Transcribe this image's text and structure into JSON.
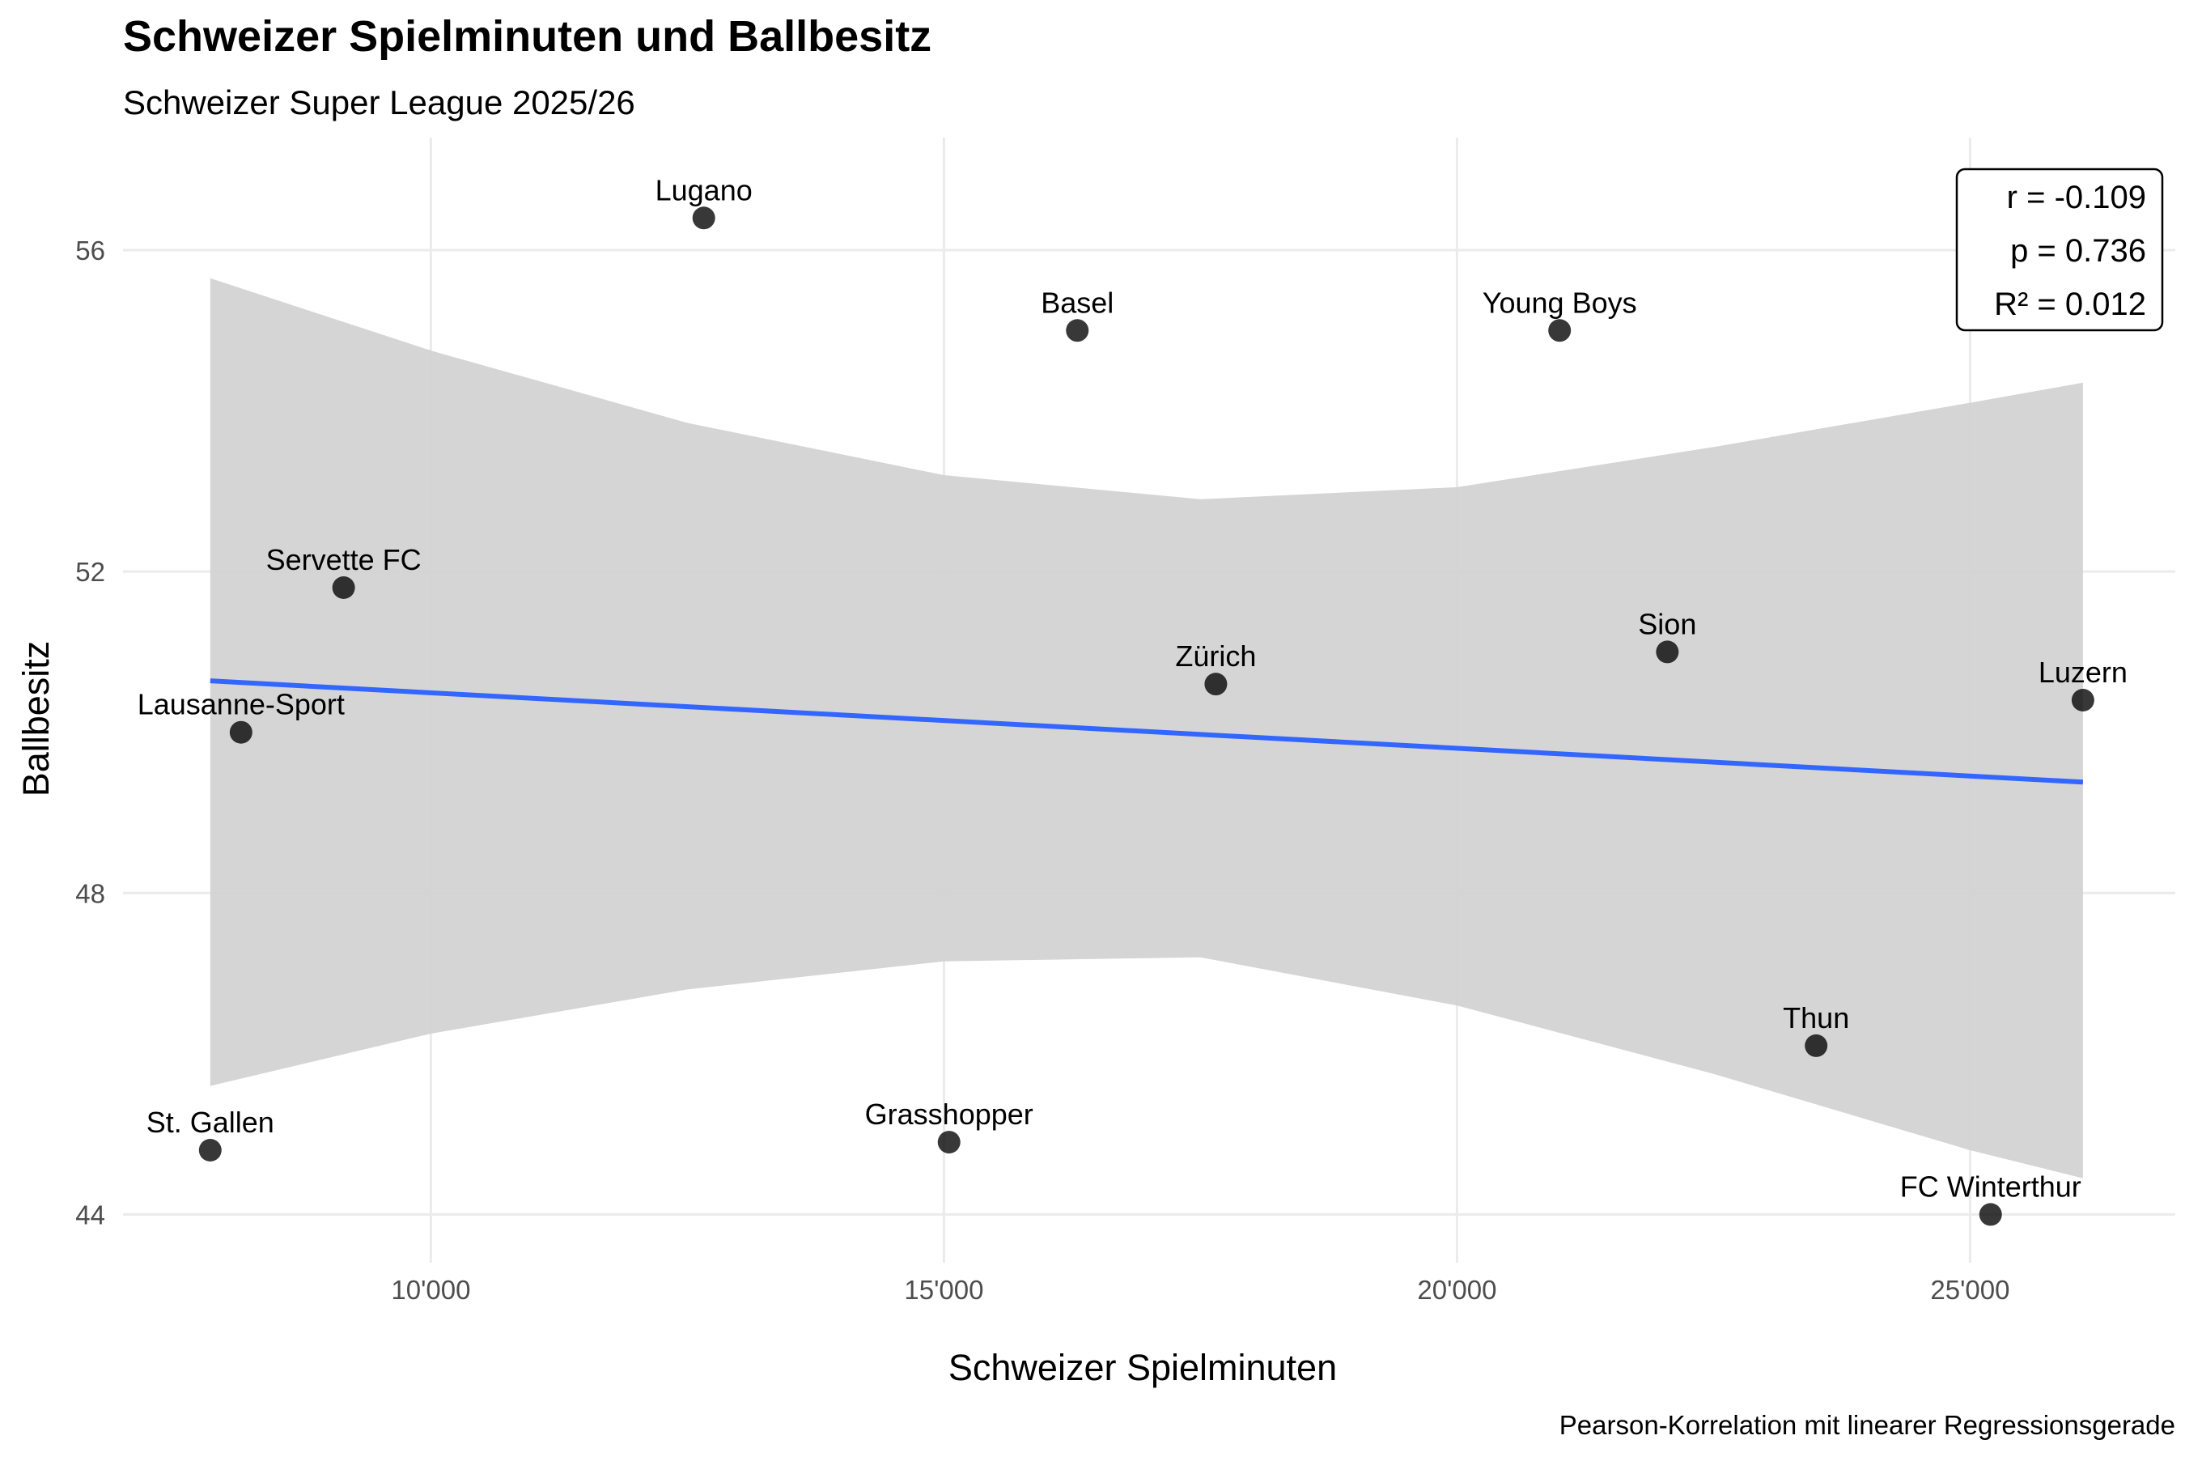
{
  "chart_data": {
    "type": "scatter",
    "title": "Schweizer Spielminuten und Ballbesitz",
    "subtitle": "Schweizer Super League 2025/26",
    "xlabel": "Schweizer Spielminuten",
    "ylabel": "Ballbesitz",
    "caption": "Pearson-Korrelation mit linearer Regressionsgerade",
    "xlim": [
      7000,
      27000
    ],
    "ylim": [
      43.4,
      57.4
    ],
    "x_ticks": [
      10000,
      15000,
      20000,
      25000
    ],
    "x_tick_labels": [
      "10'000",
      "15'000",
      "20'000",
      "25'000"
    ],
    "y_ticks": [
      44,
      48,
      52,
      56
    ],
    "y_tick_labels": [
      "44",
      "48",
      "52",
      "56"
    ],
    "grid": true,
    "points": [
      {
        "label": "Lugano",
        "x": 12660,
        "y": 56.4
      },
      {
        "label": "Basel",
        "x": 16300,
        "y": 55.0
      },
      {
        "label": "Young Boys",
        "x": 21000,
        "y": 55.0
      },
      {
        "label": "Servette FC",
        "x": 9150,
        "y": 51.8
      },
      {
        "label": "Zürich",
        "x": 17650,
        "y": 50.6
      },
      {
        "label": "Sion",
        "x": 22050,
        "y": 51.0
      },
      {
        "label": "Luzern",
        "x": 26100,
        "y": 50.4
      },
      {
        "label": "Lausanne-Sport",
        "x": 8150,
        "y": 50.0
      },
      {
        "label": "Thun",
        "x": 23500,
        "y": 46.1
      },
      {
        "label": "St. Gallen",
        "x": 7850,
        "y": 44.8
      },
      {
        "label": "Grasshopper",
        "x": 15050,
        "y": 44.9
      },
      {
        "label": "FC Winterthur",
        "x": 25200,
        "y": 44.0
      }
    ],
    "regression": {
      "color": "#3366FF",
      "start": {
        "x": 7850,
        "y": 50.64
      },
      "end": {
        "x": 26100,
        "y": 49.38
      }
    },
    "confidence_band": {
      "color": "#D3D3D3",
      "x": [
        7850,
        10000,
        12500,
        15000,
        17500,
        20000,
        22500,
        25000,
        26100
      ],
      "upper": [
        55.65,
        54.75,
        53.85,
        53.2,
        52.9,
        53.05,
        53.55,
        54.1,
        54.35
      ],
      "lower": [
        45.6,
        46.25,
        46.8,
        47.15,
        47.2,
        46.6,
        45.75,
        44.8,
        44.45
      ]
    },
    "stats": {
      "r": "r = -0.109",
      "p": "p = 0.736",
      "r2": "R² = 0.012"
    },
    "point_color": "#000000"
  }
}
